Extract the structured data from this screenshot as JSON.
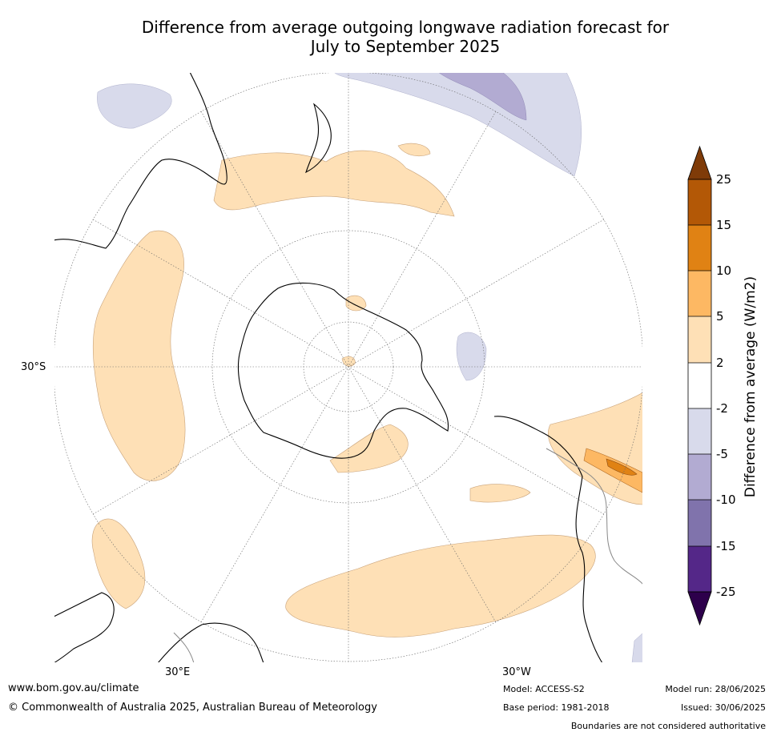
{
  "title": {
    "line1": "Difference from average outgoing longwave radiation forecast for",
    "line2": "July to September 2025"
  },
  "map": {
    "lat_label": "30°S",
    "lon_labels": [
      "30°E",
      "30°W"
    ]
  },
  "colorbar": {
    "title": "Difference from average (W/m2)",
    "levels": [
      "25",
      "15",
      "10",
      "5",
      "2",
      "-2",
      "-5",
      "-10",
      "-15",
      "-25"
    ],
    "colors": {
      "gt25": "#7f3b08",
      "15_25": "#b35806",
      "10_15": "#e08214",
      "5_10": "#fdb863",
      "2_5": "#fee0b6",
      "m2_2": "#ffffff",
      "m5_m2": "#d8daeb",
      "m10_m5": "#b2abd2",
      "m15_m10": "#8073ac",
      "m25_m15": "#542788",
      "lt_m25": "#2d004b"
    }
  },
  "footer": {
    "website": "www.bom.gov.au/climate",
    "copyright": "© Commonwealth of Australia 2025, Australian Bureau of Meteorology",
    "model": "Model: ACCESS-S2",
    "base_period": "Base period: 1981-2018",
    "model_run": "Model run: 28/06/2025",
    "issued": "Issued: 30/06/2025",
    "disclaimer": "Boundaries are not considered authoritative"
  }
}
